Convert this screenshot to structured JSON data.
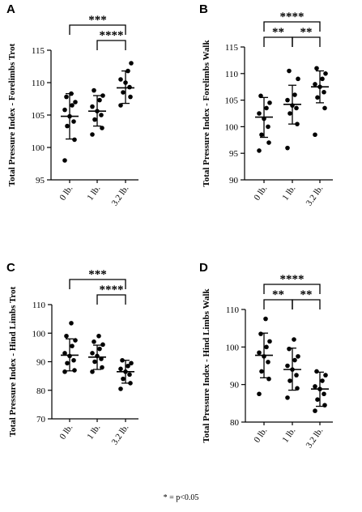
{
  "footnote": "* = p<0.05",
  "chart_data": [
    {
      "panel": "A",
      "type": "scatter",
      "ylabel": "Total Pressure Index - Forelimbs Trot",
      "categories": [
        "0 lb.",
        "1 lb.",
        "3.2 lb."
      ],
      "ylim": [
        95,
        115
      ],
      "yticks": [
        95,
        100,
        105,
        110,
        115
      ],
      "series": [
        {
          "category": "0 lb.",
          "mean": 104.8,
          "sd_low": 101.3,
          "sd_high": 108.3,
          "points": [
            98.0,
            101.2,
            103.3,
            104.0,
            104.8,
            105.8,
            106.5,
            107.0,
            107.8,
            108.3
          ]
        },
        {
          "category": "1 lb.",
          "mean": 105.6,
          "sd_low": 103.3,
          "sd_high": 108.0,
          "points": [
            102.0,
            103.0,
            104.3,
            105.0,
            105.6,
            106.3,
            107.3,
            108.0,
            108.8
          ]
        },
        {
          "category": "3.2 lb.",
          "mean": 109.2,
          "sd_low": 106.8,
          "sd_high": 111.8,
          "points": [
            106.5,
            107.8,
            108.5,
            109.3,
            110.0,
            110.5,
            111.8,
            113.0
          ]
        }
      ],
      "brackets": [
        {
          "from": "0 lb.",
          "to": "3.2 lb.",
          "level": 1,
          "label": "***"
        },
        {
          "from": "1 lb.",
          "to": "3.2 lb.",
          "level": 0,
          "label": "****"
        }
      ]
    },
    {
      "panel": "B",
      "type": "scatter",
      "ylabel": "Total Pressure Index - Forelimbs Walk",
      "categories": [
        "0 lb.",
        "1 lb.",
        "3.2 lb."
      ],
      "ylim": [
        90,
        115
      ],
      "yticks": [
        90,
        95,
        100,
        105,
        110,
        115
      ],
      "series": [
        {
          "category": "0 lb.",
          "mean": 101.8,
          "sd_low": 98.0,
          "sd_high": 105.5,
          "points": [
            95.5,
            97.0,
            98.5,
            100.0,
            101.5,
            102.5,
            103.5,
            104.5,
            105.8
          ]
        },
        {
          "category": "1 lb.",
          "mean": 104.2,
          "sd_low": 100.5,
          "sd_high": 107.8,
          "points": [
            96.0,
            100.5,
            102.5,
            103.5,
            104.0,
            105.0,
            106.0,
            109.0,
            110.5
          ]
        },
        {
          "category": "3.2 lb.",
          "mean": 107.5,
          "sd_low": 104.5,
          "sd_high": 110.5,
          "points": [
            98.5,
            103.5,
            105.5,
            106.5,
            107.5,
            108.0,
            109.0,
            110.0,
            111.0
          ]
        }
      ],
      "brackets": [
        {
          "from": "0 lb.",
          "to": "3.2 lb.",
          "level": 1,
          "label": "****"
        },
        {
          "from": "0 lb.",
          "to": "1 lb.",
          "level": 0,
          "label": "**"
        },
        {
          "from": "1 lb.",
          "to": "3.2 lb.",
          "level": 0,
          "label": "**"
        }
      ]
    },
    {
      "panel": "C",
      "type": "scatter",
      "ylabel": "Total Pressure Index - Hind Limbs Trot",
      "categories": [
        "0 lb.",
        "1 lb.",
        "3.2 lb."
      ],
      "ylim": [
        70,
        110
      ],
      "yticks": [
        70,
        80,
        90,
        100,
        110
      ],
      "series": [
        {
          "category": "0 lb.",
          "mean": 92.3,
          "sd_low": 86.8,
          "sd_high": 98.0,
          "points": [
            86.5,
            87.0,
            89.5,
            90.5,
            92.0,
            93.0,
            95.5,
            97.5,
            99.0,
            103.5
          ]
        },
        {
          "category": "1 lb.",
          "mean": 91.6,
          "sd_low": 87.3,
          "sd_high": 95.8,
          "points": [
            86.5,
            88.0,
            90.0,
            91.0,
            92.0,
            93.0,
            94.5,
            96.0,
            97.0,
            99.0
          ]
        },
        {
          "category": "3.2 lb.",
          "mean": 86.5,
          "sd_low": 82.5,
          "sd_high": 90.5,
          "points": [
            80.5,
            82.5,
            84.0,
            85.5,
            86.5,
            87.5,
            88.5,
            89.5,
            90.5
          ]
        }
      ],
      "brackets": [
        {
          "from": "0 lb.",
          "to": "3.2 lb.",
          "level": 1,
          "label": "***"
        },
        {
          "from": "1 lb.",
          "to": "3.2 lb.",
          "level": 0,
          "label": "****"
        }
      ]
    },
    {
      "panel": "D",
      "type": "scatter",
      "ylabel": "Total Pressure Index - Hind Limbs Walk",
      "categories": [
        "0 lb.",
        "1 lb.",
        "3.2 lb."
      ],
      "ylim": [
        80,
        110
      ],
      "yticks": [
        80,
        90,
        100,
        110
      ],
      "series": [
        {
          "category": "0 lb.",
          "mean": 97.8,
          "sd_low": 91.8,
          "sd_high": 103.7,
          "points": [
            87.5,
            91.5,
            93.5,
            96.0,
            97.5,
            98.5,
            100.0,
            101.5,
            103.5,
            107.5
          ]
        },
        {
          "category": "1 lb.",
          "mean": 94.0,
          "sd_low": 88.5,
          "sd_high": 99.7,
          "points": [
            86.5,
            89.0,
            91.0,
            92.5,
            94.0,
            95.0,
            96.5,
            97.5,
            99.5,
            102.0
          ]
        },
        {
          "category": "3.2 lb.",
          "mean": 88.8,
          "sd_low": 84.2,
          "sd_high": 93.3,
          "points": [
            83.0,
            84.5,
            86.0,
            87.5,
            88.8,
            89.5,
            91.0,
            92.5,
            93.5
          ]
        }
      ],
      "brackets": [
        {
          "from": "0 lb.",
          "to": "3.2 lb.",
          "level": 1,
          "label": "****"
        },
        {
          "from": "0 lb.",
          "to": "1 lb.",
          "level": 0,
          "label": "**"
        },
        {
          "from": "1 lb.",
          "to": "3.2 lb.",
          "level": 0,
          "label": "**"
        }
      ]
    }
  ]
}
